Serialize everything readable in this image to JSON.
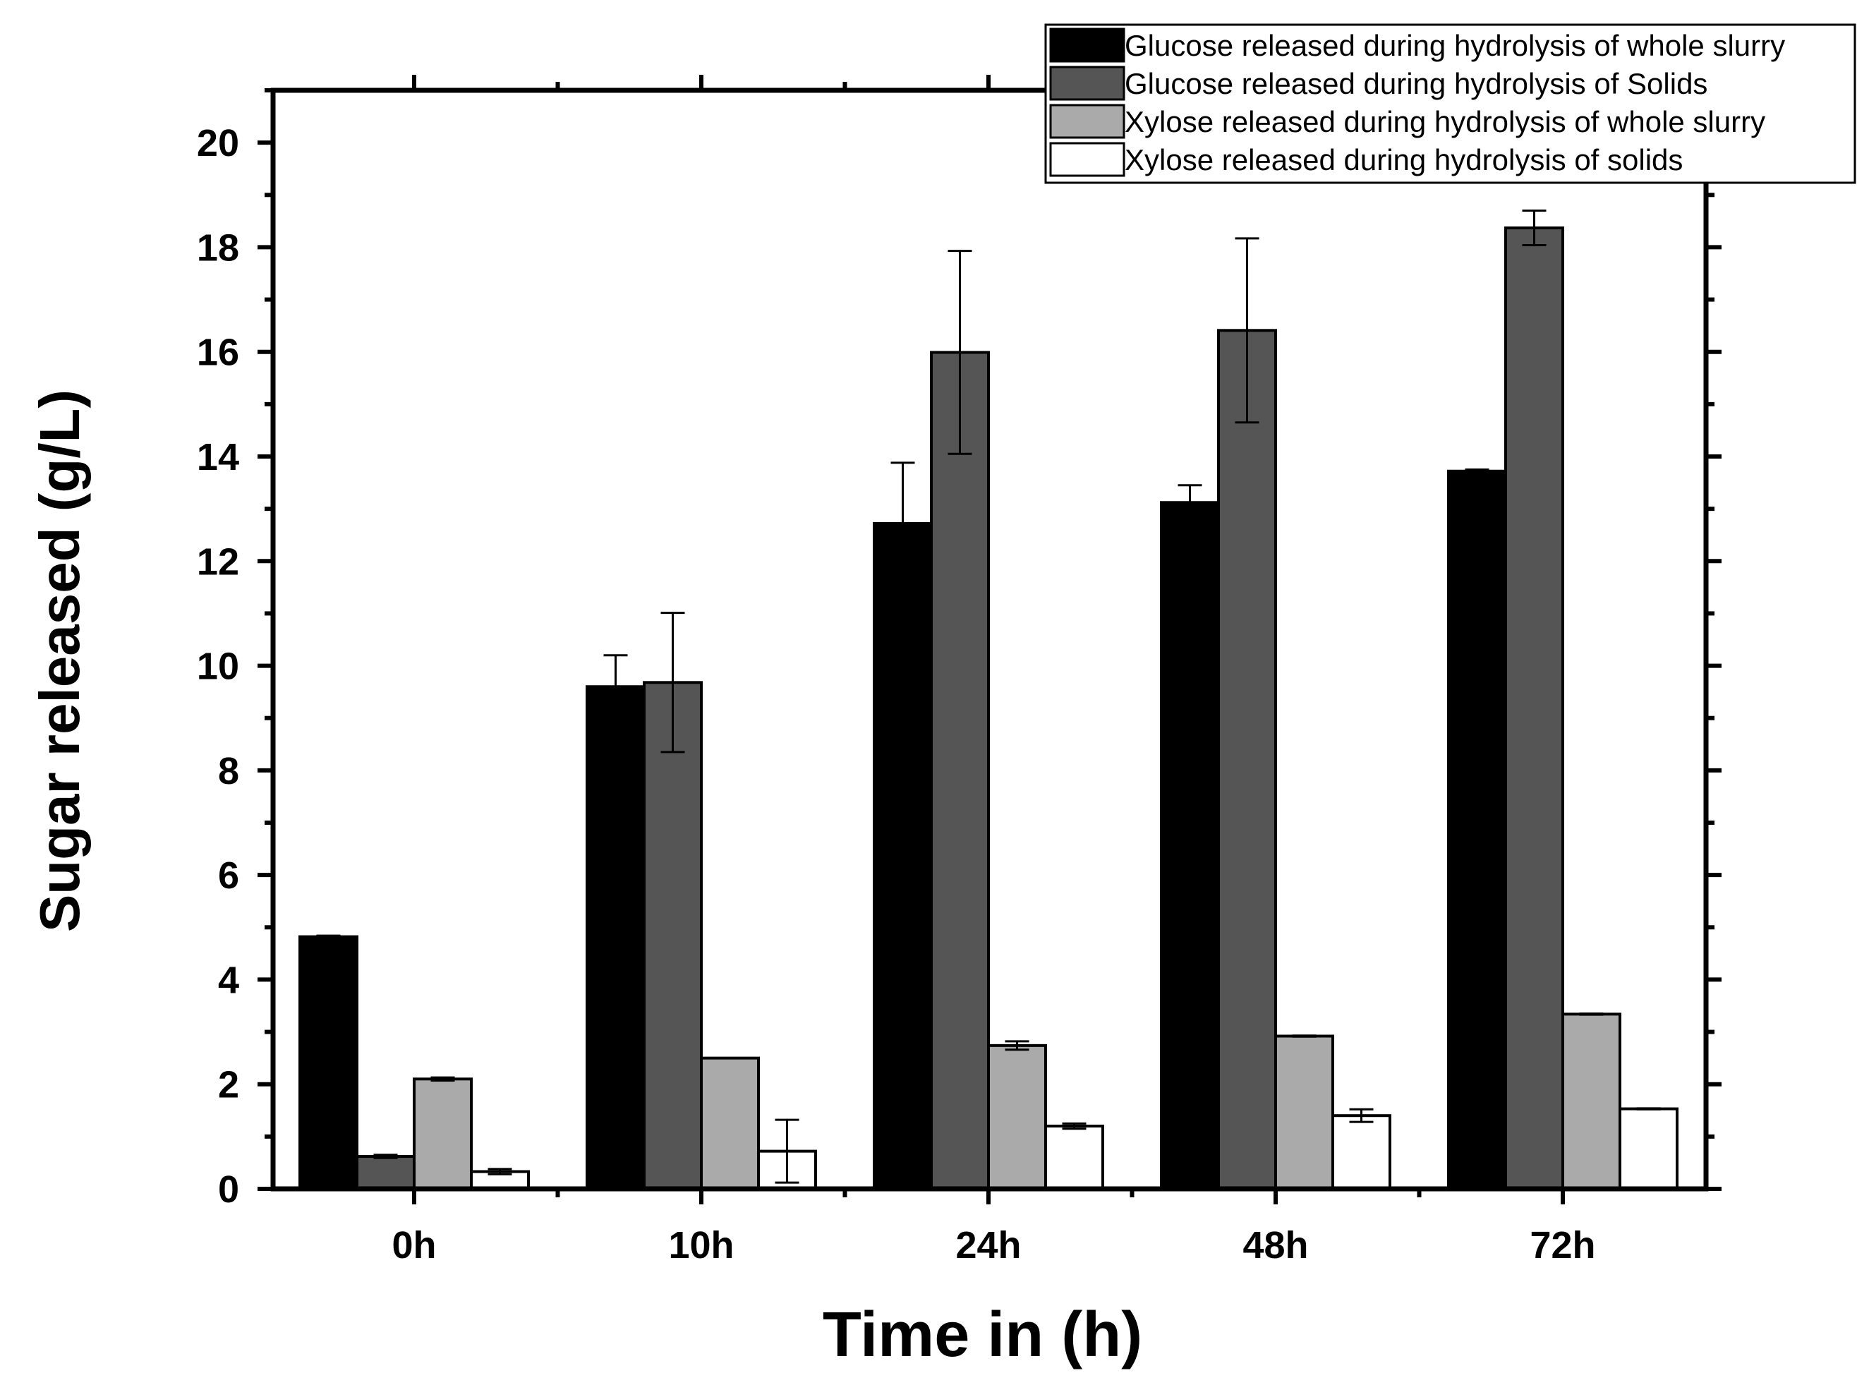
{
  "chart_data": {
    "type": "bar",
    "xlabel": "Time in (h)",
    "ylabel": "Sugar released (g/L)",
    "ylim": [
      0,
      21
    ],
    "yticks": [
      "0",
      "2",
      "4",
      "6",
      "8",
      "10",
      "12",
      "14",
      "16",
      "18",
      "20"
    ],
    "categories": [
      "0h",
      "10h",
      "24h",
      "48h",
      "72h"
    ],
    "series": [
      {
        "name": "Glucose released during hydrolysis of whole slurry",
        "color": "#000000",
        "values": [
          4.82,
          9.6,
          12.72,
          13.12,
          13.72
        ],
        "errors": [
          0.02,
          0.6,
          1.16,
          0.33,
          0.03
        ]
      },
      {
        "name": "Glucose released during hydrolysis of Solids",
        "color": "#555555",
        "values": [
          0.62,
          9.68,
          15.99,
          16.41,
          18.37
        ],
        "errors": [
          0.03,
          1.33,
          1.94,
          1.76,
          0.33
        ]
      },
      {
        "name": "Xylose released during hydrolysis of whole slurry",
        "color": "#aaaaaa",
        "values": [
          2.1,
          2.5,
          2.74,
          2.92,
          3.34
        ],
        "errors": [
          0.03,
          0.0,
          0.08,
          0.01,
          0.01
        ]
      },
      {
        "name": "Xylose released during hydrolysis of solids",
        "color": "#ffffff",
        "values": [
          0.33,
          0.72,
          1.2,
          1.4,
          1.53
        ],
        "errors": [
          0.05,
          0.6,
          0.05,
          0.12,
          0.01
        ]
      }
    ],
    "legend_position": "top-right",
    "grid": false
  }
}
